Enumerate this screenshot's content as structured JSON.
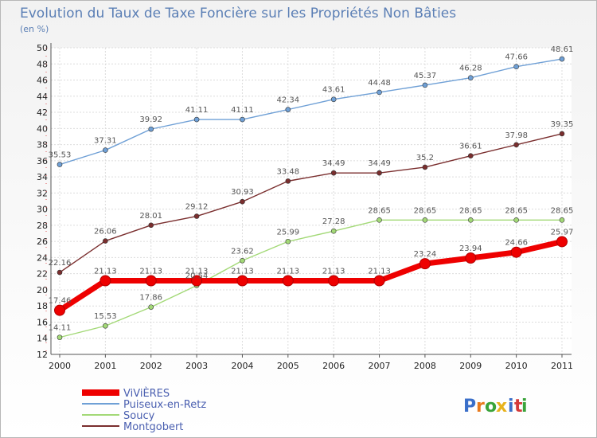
{
  "chart_data": {
    "type": "line",
    "title": "Evolution du Taux de Taxe Foncière sur les Propriétés Non Bâties",
    "unit_label": "(en %)",
    "x": [
      "2000",
      "2001",
      "2002",
      "2003",
      "2004",
      "2005",
      "2006",
      "2007",
      "2008",
      "2009",
      "2010",
      "2011"
    ],
    "ylim": [
      12,
      50
    ],
    "yticks": [
      "12",
      "14",
      "16",
      "18",
      "20",
      "22",
      "24",
      "26",
      "28",
      "30",
      "32",
      "34",
      "36",
      "38",
      "40",
      "42",
      "44",
      "46",
      "48",
      "50"
    ],
    "grid": true,
    "legend_position": "bottom-left",
    "series": [
      {
        "name": "ViViÈRES",
        "color": "#ee0000",
        "values": [
          17.46,
          21.13,
          21.13,
          21.13,
          21.13,
          21.13,
          21.13,
          21.13,
          23.24,
          23.94,
          24.66,
          25.97
        ],
        "labels": [
          "17.46",
          "21.13",
          "21.13",
          "21.13",
          "21.13",
          "21.13",
          "21.13",
          "21.13",
          "23.24",
          "23.94",
          "24.66",
          "25.97"
        ]
      },
      {
        "name": "Puiseux-en-Retz",
        "color": "#6fa0d6",
        "values": [
          35.53,
          37.31,
          39.92,
          41.11,
          41.11,
          42.34,
          43.61,
          44.48,
          45.37,
          46.28,
          47.66,
          48.61
        ],
        "labels": [
          "35.53",
          "37.31",
          "39.92",
          "41.11",
          "41.11",
          "42.34",
          "43.61",
          "44.48",
          "45.37",
          "46.28",
          "47.66",
          "48.61"
        ]
      },
      {
        "name": "Soucy",
        "color": "#a3d977",
        "values": [
          14.11,
          15.53,
          17.86,
          20.54,
          23.62,
          25.99,
          27.28,
          28.65,
          28.65,
          28.65,
          28.65,
          28.65
        ],
        "labels": [
          "14.11",
          "15.53",
          "17.86",
          "20.54",
          "23.62",
          "25.99",
          "27.28",
          "28.65",
          "28.65",
          "28.65",
          "28.65",
          "28.65"
        ]
      },
      {
        "name": "Montgobert",
        "color": "#7a2e2e",
        "values": [
          22.16,
          26.06,
          28.01,
          29.12,
          30.93,
          33.48,
          34.49,
          34.49,
          35.2,
          36.61,
          37.98,
          39.35
        ],
        "labels": [
          "22.16",
          "26.06",
          "28.01",
          "29.12",
          "30.93",
          "33.48",
          "34.49",
          "34.49",
          "35.2",
          "36.61",
          "37.98",
          "39.35"
        ]
      }
    ],
    "legend_labels": [
      "ViViÈRES",
      "Puiseux-en-Retz",
      "Soucy",
      "Montgobert"
    ]
  },
  "logo": {
    "letters": [
      "P",
      "r",
      "o",
      "x",
      "i",
      "t",
      "i"
    ],
    "colors": [
      "#3a6fc9",
      "#e87a1c",
      "#3aa33a",
      "#e8b21c",
      "#3a6fc9",
      "#d43a3a",
      "#3aa33a"
    ]
  }
}
